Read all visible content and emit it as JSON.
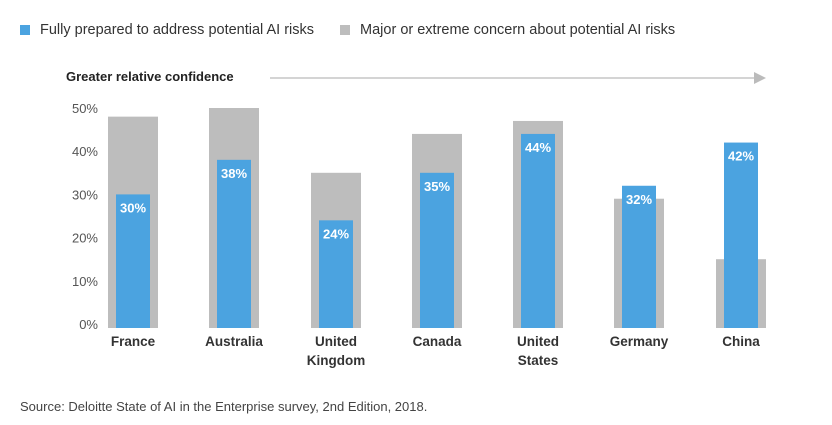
{
  "legend": {
    "prepared": "Fully prepared to address potential AI risks",
    "concern": "Major or extreme concern about potential AI risks"
  },
  "arrow_label": "Greater relative confidence",
  "source": "Source: Deloitte State of AI in the Enterprise survey, 2nd Edition, 2018.",
  "colors": {
    "prepared": "#4ba3e0",
    "concern": "#bdbdbd",
    "axis": "#555555",
    "arrow": "#bbbbbb"
  },
  "chart_data": {
    "type": "bar",
    "title": "",
    "xlabel": "",
    "ylabel": "",
    "ylim": [
      0,
      50
    ],
    "yticks": [
      "0%",
      "10%",
      "20%",
      "30%",
      "40%",
      "50%"
    ],
    "grid": false,
    "legend_position": "top-left",
    "categories": [
      [
        "France"
      ],
      [
        "Australia"
      ],
      [
        "United",
        "Kingdom"
      ],
      [
        "Canada"
      ],
      [
        "United",
        "States"
      ],
      [
        "Germany"
      ],
      [
        "China"
      ]
    ],
    "series": [
      {
        "name": "Major or extreme concern about potential AI risks",
        "values": [
          48,
          50,
          35,
          44,
          47,
          29,
          15
        ]
      },
      {
        "name": "Fully prepared to address potential AI risks",
        "values": [
          30,
          38,
          24,
          35,
          44,
          32,
          42
        ]
      }
    ],
    "data_labels": [
      "30%",
      "38%",
      "24%",
      "35%",
      "44%",
      "32%",
      "42%"
    ]
  }
}
